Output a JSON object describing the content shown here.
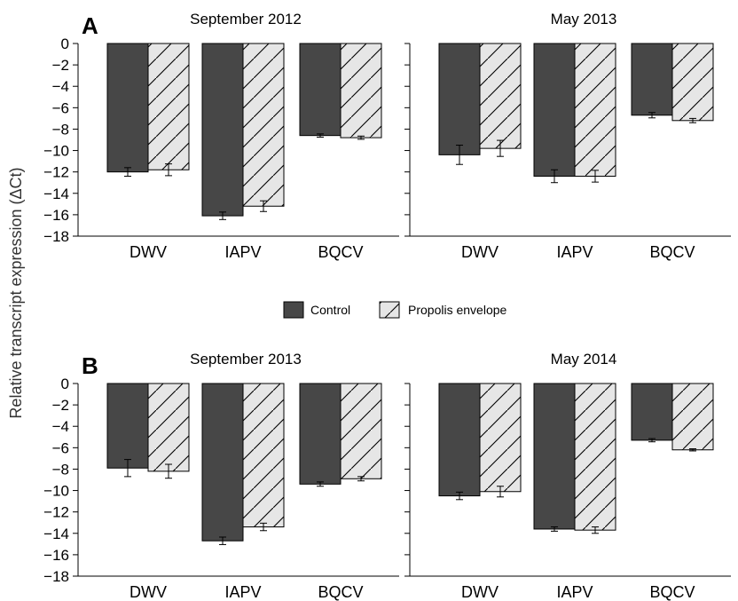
{
  "ylabel": "Relative transcript expression (ΔCt)",
  "legend": [
    "Control",
    "Propolis envelope"
  ],
  "colors": {
    "control": "#474747",
    "propolis": "#e6e6e6"
  },
  "chart_data": [
    {
      "type": "bar",
      "panel": "A",
      "title": "September 2012",
      "categories": [
        "DWV",
        "IAPV",
        "BQCV"
      ],
      "series": [
        {
          "name": "Control",
          "values": [
            -12.0,
            -16.1,
            -8.6
          ],
          "errors": [
            0.4,
            0.35,
            0.15
          ]
        },
        {
          "name": "Propolis envelope",
          "values": [
            -11.8,
            -15.2,
            -8.8
          ],
          "errors": [
            0.55,
            0.5,
            0.15
          ]
        }
      ],
      "ylim": [
        -18,
        0
      ],
      "yticks": [
        "0",
        "−2",
        "−4",
        "−6",
        "−8",
        "−10",
        "−12",
        "−14",
        "−16",
        "−18"
      ]
    },
    {
      "type": "bar",
      "title": "May 2013",
      "categories": [
        "DWV",
        "IAPV",
        "BQCV"
      ],
      "series": [
        {
          "name": "Control",
          "values": [
            -10.4,
            -12.4,
            -6.7
          ],
          "errors": [
            0.9,
            0.6,
            0.25
          ]
        },
        {
          "name": "Propolis envelope",
          "values": [
            -9.8,
            -12.4,
            -7.2
          ],
          "errors": [
            0.75,
            0.55,
            0.2
          ]
        }
      ],
      "ylim": [
        -18,
        0
      ]
    },
    {
      "type": "bar",
      "panel": "B",
      "title": "September 2013",
      "categories": [
        "DWV",
        "IAPV",
        "BQCV"
      ],
      "series": [
        {
          "name": "Control",
          "values": [
            -7.9,
            -14.7,
            -9.4
          ],
          "errors": [
            0.8,
            0.35,
            0.2
          ]
        },
        {
          "name": "Propolis envelope",
          "values": [
            -8.2,
            -13.4,
            -8.9
          ],
          "errors": [
            0.65,
            0.35,
            0.2
          ]
        }
      ],
      "ylim": [
        -18,
        0
      ],
      "yticks": [
        "0",
        "−2",
        "−4",
        "−6",
        "−8",
        "−10",
        "−12",
        "−14",
        "−16",
        "−18"
      ]
    },
    {
      "type": "bar",
      "title": "May 2014",
      "categories": [
        "DWV",
        "IAPV",
        "BQCV"
      ],
      "series": [
        {
          "name": "Control",
          "values": [
            -10.5,
            -13.6,
            -5.3
          ],
          "errors": [
            0.35,
            0.2,
            0.15
          ]
        },
        {
          "name": "Propolis envelope",
          "values": [
            -10.1,
            -13.7,
            -6.2
          ],
          "errors": [
            0.5,
            0.3,
            0.1
          ]
        }
      ],
      "ylim": [
        -18,
        0
      ]
    }
  ]
}
